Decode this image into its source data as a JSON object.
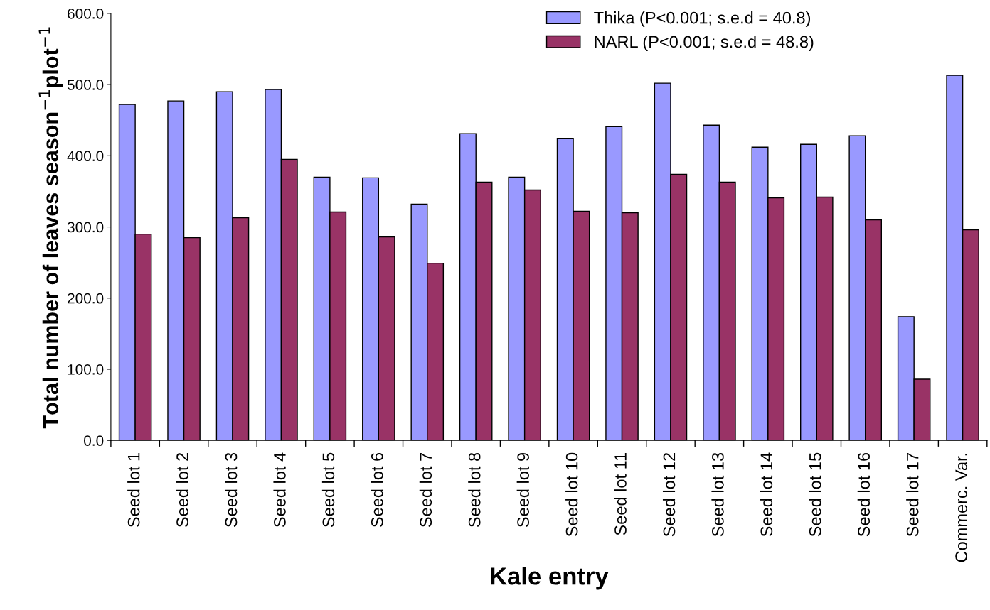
{
  "chart_data": {
    "type": "bar",
    "xlabel": "Kale entry",
    "ylabel": "Total number of leaves season$^{−1}$plot$^{−1}$",
    "categories": [
      "Seed lot 1",
      "Seed lot 2",
      "Seed lot 3",
      "Seed lot 4",
      "Seed lot 5",
      "Seed lot 6",
      "Seed lot 7",
      "Seed lot 8",
      "Seed lot 9",
      "Seed lot 10",
      "Seed lot 11",
      "Seed lot 12",
      "Seed lot 13",
      "Seed lot 14",
      "Seed lot 15",
      "Seed lot 16",
      "Seed lot 17",
      "Commerc. Var."
    ],
    "series": [
      {
        "name": "Thika (P<0.001; s.e.d = 40.8)",
        "color": "#9999ff",
        "values": [
          472,
          477,
          490,
          493,
          370,
          369,
          332,
          431,
          370,
          424,
          441,
          502,
          443,
          412,
          416,
          428,
          174,
          513
        ]
      },
      {
        "name": "NARL (P<0.001; s.e.d = 48.8)",
        "color": "#993366",
        "values": [
          290,
          285,
          313,
          395,
          321,
          286,
          249,
          363,
          352,
          322,
          320,
          374,
          363,
          341,
          342,
          310,
          86,
          296
        ]
      }
    ],
    "ylim": [
      0,
      600
    ],
    "yticks": [
      {
        "value": 0,
        "label": "0.0"
      },
      {
        "value": 100,
        "label": "100.0"
      },
      {
        "value": 200,
        "label": "200.0"
      },
      {
        "value": 300,
        "label": "300.0"
      },
      {
        "value": 400,
        "label": "400.0"
      },
      {
        "value": 500,
        "label": "500.0"
      },
      {
        "value": 600,
        "label": "600.0"
      }
    ],
    "grid": false,
    "legend": "top right"
  }
}
